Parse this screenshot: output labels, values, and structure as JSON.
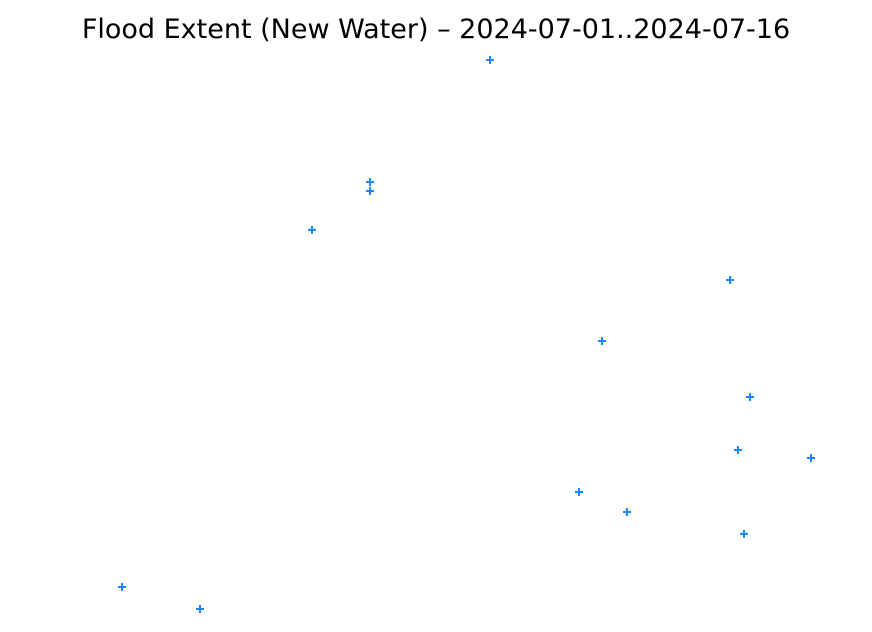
{
  "map": {
    "title": "Flood Extent (New Water) – 2024-07-01..2024-07-16",
    "marker_symbol": "plus",
    "marker_color": "#1a85ff",
    "background_color": "#ffffff",
    "marker_count": 16
  }
}
